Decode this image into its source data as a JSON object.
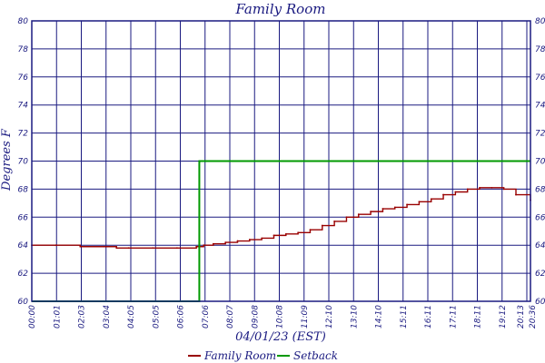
{
  "chart_data": {
    "type": "line",
    "title": "Family Room",
    "xlabel": "04/01/23 (EST)",
    "ylabel": "Degrees F",
    "ylim": [
      60,
      80
    ],
    "yticks": [
      60,
      62,
      64,
      66,
      68,
      70,
      72,
      74,
      76,
      78,
      80
    ],
    "x_tick_labels": [
      "00:00",
      "01:01",
      "02:03",
      "03:04",
      "04:05",
      "05:05",
      "06:06",
      "07:06",
      "08:07",
      "09:08",
      "10:08",
      "11:09",
      "12:10",
      "13:10",
      "14:10",
      "15:11",
      "16:11",
      "17:11",
      "18:11",
      "19:12",
      "20:13",
      "20:36"
    ],
    "x_unit": "hours",
    "xlim": [
      0,
      20.6
    ],
    "grid": true,
    "legend_position": "bottom",
    "series": [
      {
        "name": "Family Room",
        "color": "#990000",
        "x": [
          0,
          1,
          2,
          3,
          3.5,
          4,
          5,
          6,
          6.8,
          7.1,
          7.5,
          8,
          8.5,
          9,
          9.5,
          10,
          10.5,
          11,
          11.5,
          12,
          12.5,
          13,
          13.5,
          14,
          14.5,
          15,
          15.5,
          16,
          16.5,
          17,
          17.5,
          18,
          18.5,
          19,
          19.5,
          20,
          20.6
        ],
        "y": [
          64.0,
          64.0,
          63.9,
          63.9,
          63.8,
          63.8,
          63.8,
          63.8,
          63.9,
          64.0,
          64.1,
          64.2,
          64.3,
          64.4,
          64.5,
          64.7,
          64.8,
          64.9,
          65.1,
          65.4,
          65.7,
          66.0,
          66.2,
          66.4,
          66.6,
          66.7,
          66.9,
          67.1,
          67.3,
          67.6,
          67.8,
          68.0,
          68.1,
          68.1,
          68.0,
          67.6,
          67.2
        ]
      },
      {
        "name": "Setback",
        "color": "#009900",
        "x": [
          0,
          6.92,
          6.92,
          20.6
        ],
        "y": [
          60,
          60,
          70,
          70
        ]
      }
    ]
  }
}
